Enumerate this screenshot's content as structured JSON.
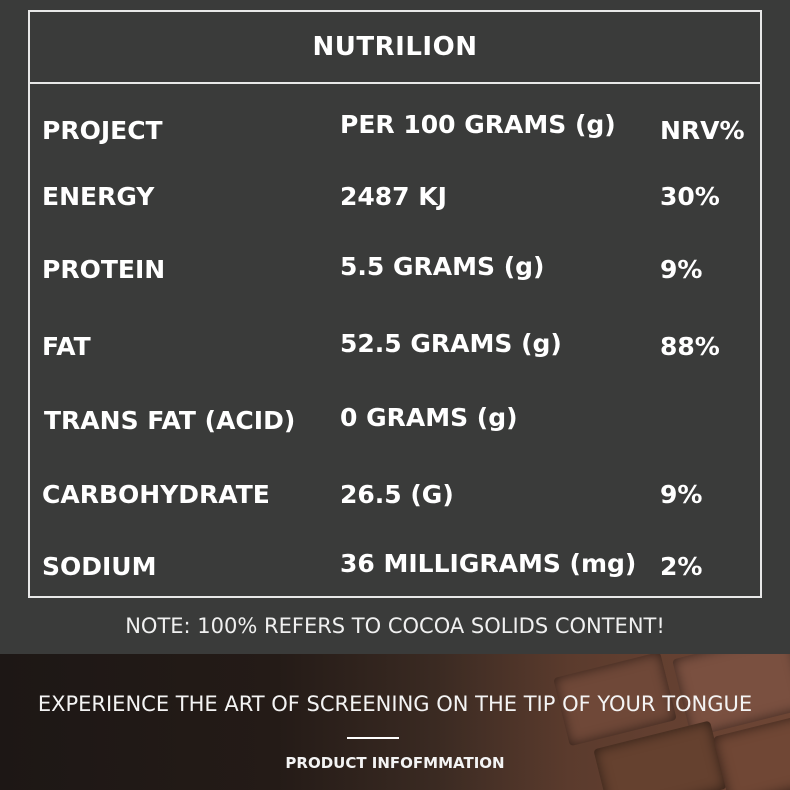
{
  "title": "NUTRILION",
  "header": {
    "project": "PROJECT",
    "per": "PER 100 GRAMS (g)",
    "nrv": "NRV%"
  },
  "rows": [
    {
      "name": "ENERGY",
      "amount": "2487 KJ",
      "nrv": "30%"
    },
    {
      "name": "PROTEIN",
      "amount": "5.5 GRAMS (g)",
      "nrv": "9%"
    },
    {
      "name": "FAT",
      "amount": "52.5 GRAMS (g)",
      "nrv": "88%"
    },
    {
      "name": "TRANS FAT (ACID)",
      "amount": "0 GRAMS (g)",
      "nrv": ""
    },
    {
      "name": "CARBOHYDRATE",
      "amount": "26.5 (G)",
      "nrv": "9%"
    },
    {
      "name": "SODIUM",
      "amount": "36 MILLIGRAMS (mg)",
      "nrv": "2%"
    }
  ],
  "note": "NOTE: 100% REFERS TO COCOA SOLIDS CONTENT!",
  "banner": {
    "tagline": "EXPERIENCE THE ART OF SCREENING ON THE TIP OF YOUR TONGUE",
    "subtitle": "PRODUCT INFOFMMATION"
  }
}
